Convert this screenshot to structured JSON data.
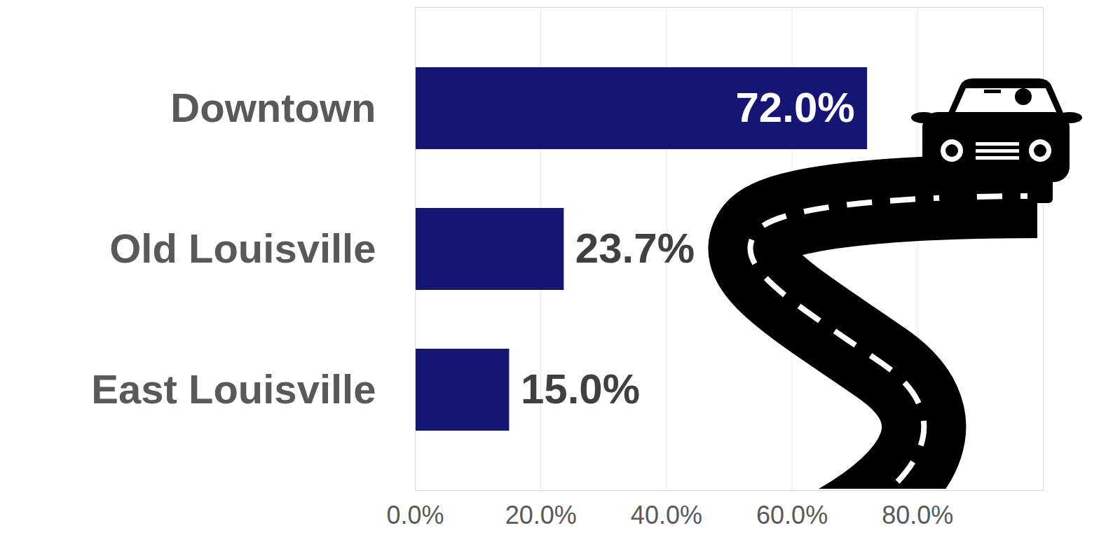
{
  "chart_data": {
    "type": "bar",
    "orientation": "horizontal",
    "categories": [
      "Downtown",
      "Old Louisville",
      "East Louisville"
    ],
    "values": [
      72.0,
      23.7,
      15.0
    ],
    "value_labels": [
      "72.0%",
      "23.7%",
      "15.0%"
    ],
    "color": "#151575",
    "xlim": [
      0,
      100
    ],
    "xticks": [
      {
        "value": 0,
        "label": "0.0%"
      },
      {
        "value": 20,
        "label": "20.0%"
      },
      {
        "value": 40,
        "label": "40.0%"
      },
      {
        "value": 60,
        "label": "60.0%"
      },
      {
        "value": 80,
        "label": "80.0%"
      }
    ],
    "grid": true,
    "data_labels": true
  }
}
